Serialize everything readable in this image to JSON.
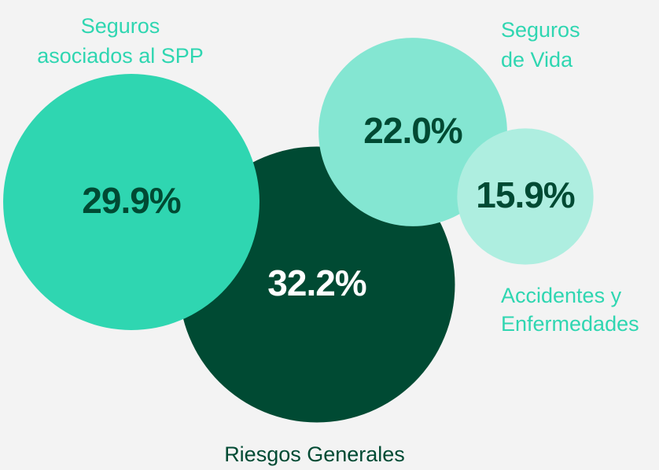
{
  "chart_data": {
    "type": "bubble",
    "categories": [
      [
        "Seguros",
        "asociados al SPP"
      ],
      [
        "Riesgos Generales"
      ],
      [
        "Seguros",
        "de Vida"
      ],
      [
        "Accidentes y",
        "Enfermedades"
      ]
    ],
    "values": [
      29.9,
      32.2,
      22.0,
      15.9
    ],
    "value_labels": [
      "29.9%",
      "32.2%",
      "22.0%",
      "15.9%"
    ],
    "colors": [
      "#2fd6b1",
      "#004a33",
      "#84e6d2",
      "#aeeee0"
    ]
  }
}
